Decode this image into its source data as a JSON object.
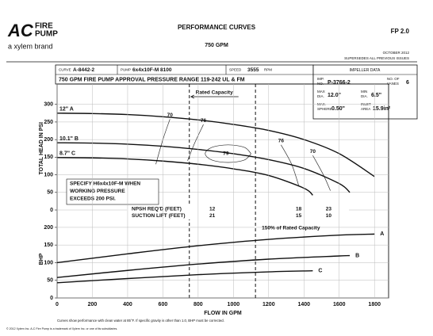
{
  "header": {
    "logo_mark": "AC",
    "logo_line1": "FIRE",
    "logo_line2": "PUMP",
    "brand": "a xylem brand",
    "title": "PERFORMANCE CURVES",
    "subtitle": "750 GPM",
    "code": "FP 2.0",
    "date": "OCTOBER 2012",
    "supersedes": "SUPERSEDES ALL PREVIOUS ISSUES"
  },
  "info": {
    "curve_label": "CURVE",
    "curve": "A-8442-2",
    "pump_label": "PUMP",
    "pump": "6x4x10F-M  8100",
    "speed_label": "SPEED",
    "speed": "3555",
    "speed_unit": "RPM",
    "range": "750 GPM FIRE PUMP APPROVAL PRESSURE RANGE 119-242 UL & FM"
  },
  "impeller": {
    "title": "IMPELLER DATA",
    "imp_label1": "IMP.",
    "imp_label2": "NO.",
    "imp": "P-3766-2",
    "vanes_label1": "NO. OF",
    "vanes_label2": "VANES",
    "vanes": "6",
    "max_label1": "MAX",
    "max_label2": "DIA.",
    "max": "12.0\"",
    "min_label1": "MIN",
    "min_label2": "DIA.",
    "min": "6.5\"",
    "sphere_label1": "MAX.",
    "sphere_label2": "SPHERE",
    "sphere": "0.50\"",
    "inlet_label1": "INLET",
    "inlet_label2": "AREA",
    "inlet": "15.9in²"
  },
  "footer": {
    "note": "Curves show performance with clean water at 85°F. If specific gravity is other than 1.0, BHP must be corrected.",
    "copyright": "© 2012 Xylem Inc. A-C Fire Pump is a trademark of Xylem Inc. or one of its subsidiaries."
  },
  "chart_data": [
    {
      "type": "line",
      "y_label": "TOTAL HEAD IN PSI",
      "xlim": [
        0,
        1880
      ],
      "ylim": [
        0,
        350
      ],
      "yticks": [
        0,
        50,
        100,
        150,
        200,
        250,
        300
      ],
      "grid": true,
      "series": [
        {
          "name": "12\" A",
          "color": "#111111",
          "x": [
            0,
            200,
            400,
            600,
            800,
            1000,
            1200,
            1400,
            1600,
            1800
          ],
          "values": [
            275,
            274,
            271,
            265,
            256,
            243,
            226,
            200,
            160,
            95
          ]
        },
        {
          "name": "10.1\" B",
          "color": "#111111",
          "x": [
            0,
            200,
            400,
            600,
            800,
            1000,
            1200,
            1400,
            1600,
            1660
          ],
          "values": [
            191,
            190,
            187,
            181,
            172,
            160,
            143,
            118,
            75,
            50
          ]
        },
        {
          "name": "8.7\" C",
          "color": "#111111",
          "x": [
            0,
            200,
            400,
            600,
            800,
            1000,
            1200,
            1400,
            1450
          ],
          "values": [
            149,
            148,
            145,
            139,
            130,
            117,
            98,
            62,
            42
          ]
        }
      ],
      "efficiency": [
        {
          "name": "70",
          "x": [
            640,
            600,
            560
          ],
          "values": [
            258,
            200,
            130
          ]
        },
        {
          "name": "76",
          "x": [
            830,
            780,
            740
          ],
          "values": [
            243,
            190,
            140
          ]
        },
        {
          "name": "79",
          "x": [
            1100,
            1062,
            970,
            878,
            840,
            878,
            970,
            1062,
            1100
          ],
          "values": [
            160,
            178,
            185,
            178,
            160,
            142,
            135,
            142,
            160
          ]
        },
        {
          "name": "76",
          "x": [
            1270,
            1330,
            1370
          ],
          "values": [
            185,
            130,
            70
          ]
        },
        {
          "name": "70",
          "x": [
            1450,
            1510,
            1550
          ],
          "values": [
            155,
            100,
            55
          ]
        }
      ],
      "marker": {
        "label": "Rated Capacity",
        "x": 750
      },
      "note": [
        "SPECIFY H6x4x10F-M WHEN",
        "WORKING PRESSURE",
        "EXCEEDS 200 PSI."
      ],
      "npsh": {
        "npsh_label": "NPSH REQ'D (FEET)",
        "lift_label": "SUCTION LIFT (FEET)",
        "x": [
          880,
          1370,
          1540
        ],
        "npsh": [
          12,
          18,
          23
        ],
        "suction_lift": [
          21,
          15,
          10
        ]
      }
    },
    {
      "type": "line",
      "y_label": "BHP",
      "x_label": "FLOW IN GPM",
      "xlim": [
        0,
        1880
      ],
      "ylim": [
        0,
        220
      ],
      "xticks": [
        0,
        200,
        400,
        600,
        800,
        1000,
        1200,
        1400,
        1600,
        1800
      ],
      "yticks": [
        0,
        50,
        100,
        150,
        200
      ],
      "grid": true,
      "series": [
        {
          "name": "A",
          "color": "#111111",
          "x": [
            0,
            400,
            800,
            1200,
            1600,
            1800
          ],
          "values": [
            100,
            125,
            148,
            166,
            178,
            181
          ]
        },
        {
          "name": "B",
          "color": "#111111",
          "x": [
            0,
            400,
            800,
            1200,
            1600,
            1660
          ],
          "values": [
            58,
            78,
            96,
            110,
            119,
            120
          ]
        },
        {
          "name": "C",
          "color": "#111111",
          "x": [
            0,
            400,
            800,
            1200,
            1450
          ],
          "values": [
            43,
            55,
            66,
            74,
            77
          ]
        }
      ],
      "marker": {
        "label": "150% of Rated Capacity",
        "x": 1125
      }
    }
  ]
}
